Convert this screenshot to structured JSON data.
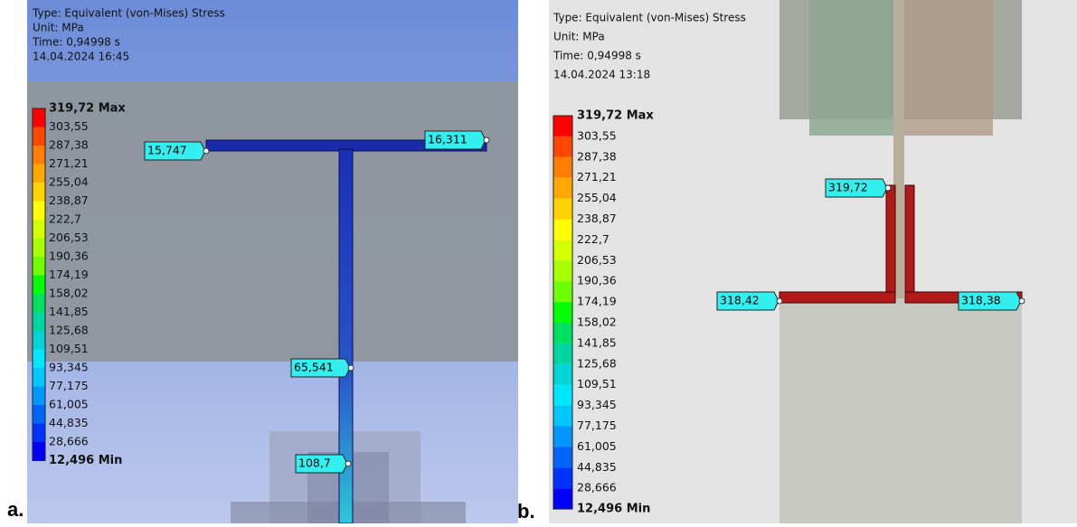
{
  "legend_colors": [
    "#ff0000",
    "#ff4600",
    "#ff7d00",
    "#ffa800",
    "#ffd200",
    "#ffff00",
    "#d4ff00",
    "#a8ff00",
    "#6eff00",
    "#00ff00",
    "#00e060",
    "#00d4a0",
    "#00d4d4",
    "#00e6ff",
    "#00c8ff",
    "#0096ff",
    "#0064ff",
    "#0032ff",
    "#0000ff"
  ],
  "panels": [
    {
      "label": "a.",
      "header": [
        "Type: Equivalent (von-Mises) Stress",
        "Unit: MPa",
        "Time: 0,94998 s",
        "14.04.2024 16:45"
      ],
      "legend": [
        "319,72 Max",
        "303,55",
        "287,38",
        "271,21",
        "255,04",
        "238,87",
        "222,7",
        "206,53",
        "190,36",
        "174,19",
        "158,02",
        "141,85",
        "125,68",
        "109,51",
        "93,345",
        "77,175",
        "61,005",
        "44,835",
        "28,666",
        "12,496 Min"
      ],
      "probes": [
        "15,747",
        "16,311",
        "65,541",
        "108,7"
      ]
    },
    {
      "label": "b.",
      "header": [
        "Type: Equivalent (von-Mises) Stress",
        "Unit: MPa",
        "Time: 0,94998 s",
        "14.04.2024 13:18"
      ],
      "legend": [
        "319,72 Max",
        "303,55",
        "287,38",
        "271,21",
        "255,04",
        "238,87",
        "222,7",
        "206,53",
        "190,36",
        "174,19",
        "158,02",
        "141,85",
        "125,68",
        "109,51",
        "93,345",
        "77,175",
        "61,005",
        "44,835",
        "28,666",
        "12,496 Min"
      ],
      "probes": [
        "319,72",
        "318,42",
        "318,38"
      ]
    }
  ]
}
